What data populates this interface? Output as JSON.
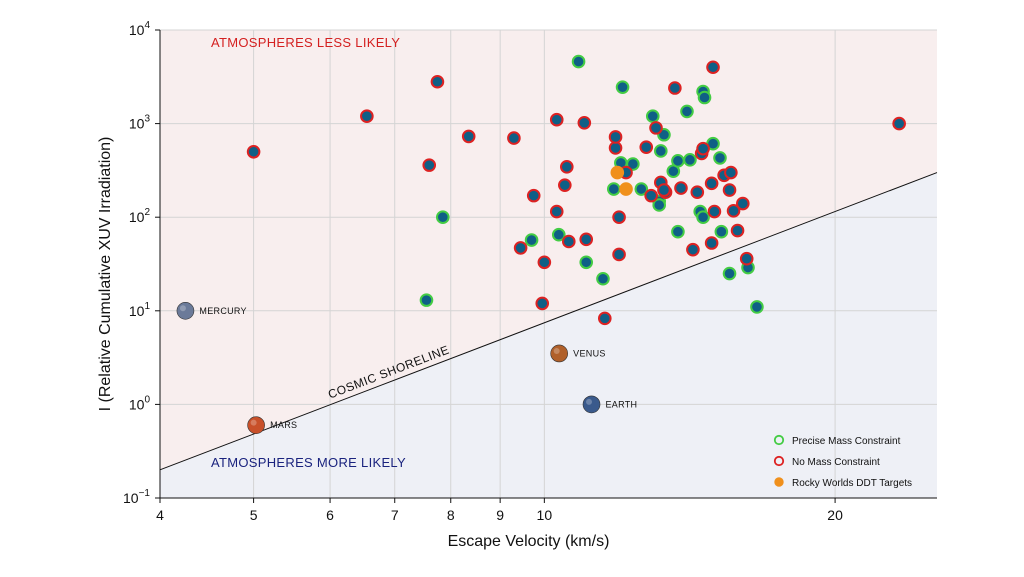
{
  "chart_data": {
    "type": "scatter",
    "xlabel": "Escape Velocity (km/s)",
    "ylabel": "I (Relative Cumulative XUV Irradiation)",
    "x_scale": "log",
    "y_scale": "log",
    "xlim": [
      4,
      25.5
    ],
    "ylim": [
      0.1,
      10000
    ],
    "x_ticks": [
      4,
      5,
      6,
      7,
      8,
      9,
      10,
      20
    ],
    "x_tick_labels": [
      "4",
      "5",
      "6",
      "7",
      "8",
      "9",
      "10",
      "20"
    ],
    "y_ticks": [
      0.1,
      1,
      10,
      100,
      1000,
      10000
    ],
    "y_tick_labels": [
      {
        "base": "10",
        "exp": "−1"
      },
      {
        "base": "10",
        "exp": "0"
      },
      {
        "base": "10",
        "exp": "1"
      },
      {
        "base": "10",
        "exp": "2"
      },
      {
        "base": "10",
        "exp": "3"
      },
      {
        "base": "10",
        "exp": "4"
      }
    ],
    "grid": true,
    "regions": {
      "upper_label": "ATMOSPHERES LESS LIKELY",
      "lower_label": "ATMOSPHERES MORE LIKELY",
      "upper_color": "#f8eeee",
      "lower_color": "#eef0f6",
      "upper_label_color": "#d42020",
      "lower_label_color": "#1a237e"
    },
    "shoreline": {
      "label": "COSMIC SHORELINE",
      "points": [
        [
          4,
          0.2
        ],
        [
          25.5,
          300
        ]
      ]
    },
    "planets": [
      {
        "name": "MERCURY",
        "x": 4.25,
        "y": 10,
        "color": "#6b7a99"
      },
      {
        "name": "MARS",
        "x": 5.03,
        "y": 0.6,
        "color": "#c8502a"
      },
      {
        "name": "VENUS",
        "x": 10.36,
        "y": 3.5,
        "color": "#b0602a"
      },
      {
        "name": "EARTH",
        "x": 11.19,
        "y": 1.0,
        "color": "#3a5a8c"
      }
    ],
    "legend": {
      "position": "bottom-right",
      "entries": [
        {
          "label": "Precise Mass Constraint",
          "color": "#44cc44",
          "style": "ring"
        },
        {
          "label": "No Mass Constraint",
          "color": "#dd2222",
          "style": "ring"
        },
        {
          "label": "Rocky Worlds DDT Targets",
          "color": "#f0901c",
          "style": "filled"
        }
      ]
    },
    "series": [
      {
        "name": "Precise Mass Constraint",
        "ring_color": "#44cc44",
        "fill_color": "#0f5f86",
        "points": [
          [
            10.85,
            4600
          ],
          [
            12.05,
            2450
          ],
          [
            7.55,
            13
          ],
          [
            7.85,
            100
          ],
          [
            10.35,
            65
          ],
          [
            9.7,
            57
          ],
          [
            11.05,
            33
          ],
          [
            11.5,
            22
          ],
          [
            11.8,
            200
          ],
          [
            12.35,
            370
          ],
          [
            12.6,
            200
          ],
          [
            12.95,
            1200
          ],
          [
            13.3,
            760
          ],
          [
            13.2,
            510
          ],
          [
            13.15,
            148
          ],
          [
            13.15,
            135
          ],
          [
            13.6,
            310
          ],
          [
            13.75,
            400
          ],
          [
            14.05,
            1350
          ],
          [
            14.15,
            410
          ],
          [
            14.6,
            2200
          ],
          [
            14.65,
            1900
          ],
          [
            14.95,
            610
          ],
          [
            15.2,
            430
          ],
          [
            14.5,
            115
          ],
          [
            14.6,
            100
          ],
          [
            15.55,
            25
          ],
          [
            15.25,
            70
          ],
          [
            16.25,
            29
          ],
          [
            16.6,
            11
          ],
          [
            12.0,
            380
          ],
          [
            13.75,
            70
          ]
        ]
      },
      {
        "name": "No Mass Constraint",
        "ring_color": "#dd2222",
        "fill_color": "#0f5f86",
        "points": [
          [
            5.0,
            500
          ],
          [
            6.55,
            1200
          ],
          [
            7.6,
            360
          ],
          [
            7.75,
            2800
          ],
          [
            8.35,
            730
          ],
          [
            9.3,
            700
          ],
          [
            9.45,
            47
          ],
          [
            9.75,
            170
          ],
          [
            9.95,
            12
          ],
          [
            10.0,
            33
          ],
          [
            10.3,
            1100
          ],
          [
            10.3,
            115
          ],
          [
            10.5,
            220
          ],
          [
            10.55,
            345
          ],
          [
            10.6,
            55
          ],
          [
            11.0,
            1020
          ],
          [
            11.05,
            58
          ],
          [
            11.55,
            8.3
          ],
          [
            11.85,
            550
          ],
          [
            11.85,
            720
          ],
          [
            11.95,
            100
          ],
          [
            11.95,
            40
          ],
          [
            12.75,
            560
          ],
          [
            13.05,
            900
          ],
          [
            12.9,
            170
          ],
          [
            13.2,
            235
          ],
          [
            13.35,
            185
          ],
          [
            13.3,
            195
          ],
          [
            13.65,
            2400
          ],
          [
            13.85,
            205
          ],
          [
            14.25,
            45
          ],
          [
            14.4,
            185
          ],
          [
            14.55,
            480
          ],
          [
            14.6,
            540
          ],
          [
            14.95,
            4000
          ],
          [
            14.9,
            230
          ],
          [
            15.0,
            115
          ],
          [
            15.35,
            280
          ],
          [
            15.6,
            300
          ],
          [
            15.55,
            195
          ],
          [
            15.7,
            117
          ],
          [
            15.85,
            72
          ],
          [
            16.2,
            36
          ],
          [
            16.05,
            140
          ],
          [
            14.9,
            53
          ],
          [
            23.3,
            1000
          ],
          [
            12.15,
            300
          ]
        ]
      },
      {
        "name": "Rocky Worlds DDT Targets",
        "ring_color": "#f0901c",
        "fill_color": "#f0901c",
        "points": [
          [
            11.9,
            300
          ],
          [
            12.15,
            200
          ]
        ]
      }
    ]
  }
}
